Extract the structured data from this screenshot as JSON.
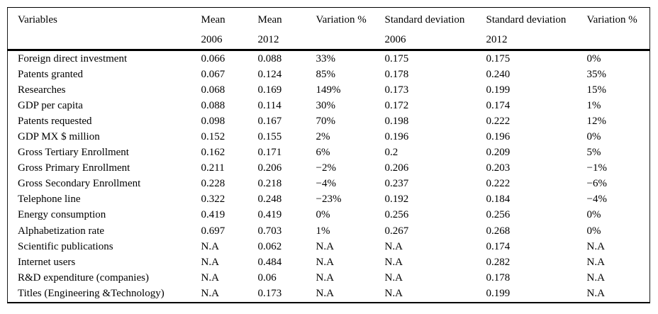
{
  "page": {
    "background": "#ffffff",
    "text_color": "#000000",
    "rule_color": "#000000"
  },
  "table": {
    "columns": [
      {
        "label": "Variables",
        "sub": ""
      },
      {
        "label": "Mean",
        "sub": "2006"
      },
      {
        "label": "Mean",
        "sub": "2012"
      },
      {
        "label": "Variation %",
        "sub": ""
      },
      {
        "label": "Standard deviation",
        "sub": "2006"
      },
      {
        "label": "Standard deviation",
        "sub": "2012"
      },
      {
        "label": "Variation %",
        "sub": ""
      }
    ],
    "rows": [
      [
        "Foreign direct investment",
        "0.066",
        "0.088",
        "33%",
        "0.175",
        "0.175",
        "0%"
      ],
      [
        "Patents granted",
        "0.067",
        "0.124",
        "85%",
        "0.178",
        "0.240",
        "35%"
      ],
      [
        "Researches",
        "0.068",
        "0.169",
        "149%",
        "0.173",
        "0.199",
        "15%"
      ],
      [
        "GDP per capita",
        "0.088",
        "0.114",
        "30%",
        "0.172",
        "0.174",
        "1%"
      ],
      [
        "Patents requested",
        "0.098",
        "0.167",
        "70%",
        "0.198",
        "0.222",
        "12%"
      ],
      [
        "GDP MX $ million",
        "0.152",
        "0.155",
        "2%",
        "0.196",
        "0.196",
        "0%"
      ],
      [
        "Gross Tertiary Enrollment",
        "0.162",
        "0.171",
        "6%",
        "0.2",
        "0.209",
        "5%"
      ],
      [
        "Gross Primary Enrollment",
        "0.211",
        "0.206",
        "−2%",
        "0.206",
        "0.203",
        "−1%"
      ],
      [
        "Gross Secondary Enrollment",
        "0.228",
        "0.218",
        "−4%",
        "0.237",
        "0.222",
        "−6%"
      ],
      [
        "Telephone line",
        "0.322",
        "0.248",
        "−23%",
        "0.192",
        "0.184",
        "−4%"
      ],
      [
        "Energy consumption",
        "0.419",
        "0.419",
        "0%",
        "0.256",
        "0.256",
        "0%"
      ],
      [
        "Alphabetization rate",
        "0.697",
        "0.703",
        "1%",
        "0.267",
        "0.268",
        "0%"
      ],
      [
        "Scientific publications",
        "N.A",
        "0.062",
        "N.A",
        "N.A",
        "0.174",
        "N.A"
      ],
      [
        "Internet users",
        "N.A",
        "0.484",
        "N.A",
        "N.A",
        "0.282",
        "N.A"
      ],
      [
        "R&D expenditure (companies)",
        "N.A",
        "0.06",
        "N.A",
        "N.A",
        "0.178",
        "N.A"
      ],
      [
        "Titles (Engineering &Technology)",
        "N.A",
        "0.173",
        "N.A",
        "N.A",
        "0.199",
        "N.A"
      ]
    ]
  }
}
